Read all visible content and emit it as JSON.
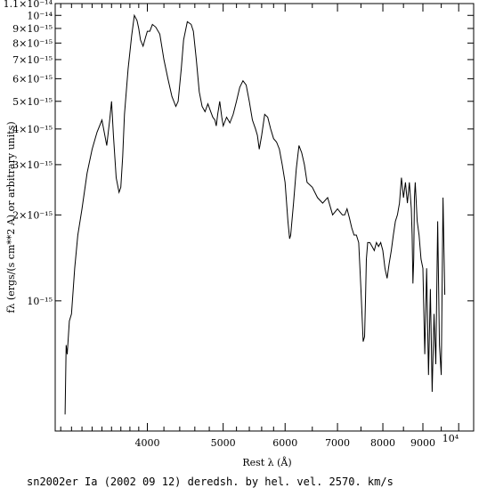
{
  "chart_data": {
    "type": "line",
    "xlabel": "Rest λ (Å)",
    "ylabel": "fλ (ergs/(s cm**2 A) or arbitrary units)",
    "caption": "sn2002er Ia (2002 09 12) deredsh. by hel. vel.  2570. km/s",
    "xscale": "log",
    "yscale": "log",
    "xlim": [
      3050,
      10450
    ],
    "ylim": [
      3.5e-16,
      1.1e-14
    ],
    "grid": false,
    "x_ticks": [
      {
        "value": 4000,
        "label": "4000"
      },
      {
        "value": 5000,
        "label": "5000"
      },
      {
        "value": 6000,
        "label": "6000"
      },
      {
        "value": 7000,
        "label": "7000"
      },
      {
        "value": 8000,
        "label": "8000"
      },
      {
        "value": 9000,
        "label": "9000"
      },
      {
        "value": 10000,
        "label": "10⁴"
      }
    ],
    "y_ticks": [
      {
        "value": 1.1e-14,
        "label": "1.1×10⁻¹⁴"
      },
      {
        "value": 1e-14,
        "label": "10⁻¹⁴"
      },
      {
        "value": 9e-15,
        "label": "9×10⁻¹⁵"
      },
      {
        "value": 8e-15,
        "label": "8×10⁻¹⁵"
      },
      {
        "value": 7e-15,
        "label": "7×10⁻¹⁵"
      },
      {
        "value": 6e-15,
        "label": "6×10⁻¹⁵"
      },
      {
        "value": 5e-15,
        "label": "5×10⁻¹⁵"
      },
      {
        "value": 4e-15,
        "label": "4×10⁻¹⁵"
      },
      {
        "value": 3e-15,
        "label": "3×10⁻¹⁵"
      },
      {
        "value": 2e-15,
        "label": "2×10⁻¹⁵"
      },
      {
        "value": 1e-15,
        "label": "10⁻¹⁵"
      }
    ],
    "series": [
      {
        "x": [
          3140,
          3150,
          3160,
          3180,
          3200,
          3230,
          3260,
          3300,
          3350,
          3400,
          3450,
          3500,
          3550,
          3580,
          3600,
          3620,
          3650,
          3680,
          3700,
          3720,
          3740,
          3780,
          3820,
          3850,
          3880,
          3900,
          3920,
          3950,
          3980,
          4000,
          4030,
          4060,
          4100,
          4150,
          4200,
          4250,
          4300,
          4350,
          4380,
          4420,
          4450,
          4500,
          4550,
          4580,
          4620,
          4660,
          4700,
          4740,
          4780,
          4820,
          4850,
          4880,
          4900,
          4920,
          4950,
          4980,
          5000,
          5050,
          5100,
          5150,
          5200,
          5250,
          5300,
          5350,
          5400,
          5450,
          5500,
          5530,
          5560,
          5600,
          5650,
          5700,
          5750,
          5800,
          5850,
          5900,
          5950,
          6000,
          6050,
          6080,
          6100,
          6150,
          6200,
          6250,
          6300,
          6350,
          6400,
          6500,
          6600,
          6700,
          6800,
          6900,
          7000,
          7050,
          7100,
          7150,
          7200,
          7250,
          7300,
          7350,
          7400,
          7450,
          7500,
          7550,
          7580,
          7600,
          7620,
          7650,
          7700,
          7750,
          7800,
          7850,
          7900,
          7950,
          8000,
          8050,
          8100,
          8150,
          8200,
          8250,
          8300,
          8350,
          8400,
          8450,
          8500,
          8550,
          8600,
          8650,
          8700,
          8720,
          8740,
          8760,
          8780,
          8800,
          8850,
          8900,
          8950,
          9000,
          9050,
          9100,
          9150,
          9200,
          9250,
          9300,
          9350,
          9400,
          9450,
          9500,
          9550,
          9600
        ],
        "y": [
          4e-16,
          7e-16,
          6.5e-16,
          8.5e-16,
          9e-16,
          1.3e-15,
          1.7e-15,
          2.1e-15,
          2.8e-15,
          3.4e-15,
          3.9e-15,
          4.3e-15,
          3.5e-15,
          4.3e-15,
          5e-15,
          3.8e-15,
          2.7e-15,
          2.4e-15,
          2.5e-15,
          3.2e-15,
          4.5e-15,
          6.5e-15,
          8.5e-15,
          1e-14,
          9.6e-15,
          9e-15,
          8.2e-15,
          7.8e-15,
          8.4e-15,
          8.8e-15,
          8.8e-15,
          9.3e-15,
          9.1e-15,
          8.6e-15,
          7e-15,
          6e-15,
          5.2e-15,
          4.8e-15,
          5e-15,
          6.5e-15,
          8.2e-15,
          9.5e-15,
          9.3e-15,
          8.8e-15,
          7e-15,
          5.4e-15,
          4.8e-15,
          4.6e-15,
          4.9e-15,
          4.6e-15,
          4.4e-15,
          4.3e-15,
          4.1e-15,
          4.5e-15,
          5e-15,
          4.4e-15,
          4.1e-15,
          4.4e-15,
          4.2e-15,
          4.5e-15,
          5e-15,
          5.6e-15,
          5.9e-15,
          5.7e-15,
          5e-15,
          4.3e-15,
          4e-15,
          3.8e-15,
          3.4e-15,
          3.8e-15,
          4.5e-15,
          4.4e-15,
          4e-15,
          3.7e-15,
          3.6e-15,
          3.4e-15,
          3e-15,
          2.6e-15,
          1.9e-15,
          1.65e-15,
          1.7e-15,
          2.2e-15,
          2.9e-15,
          3.5e-15,
          3.3e-15,
          3e-15,
          2.6e-15,
          2.5e-15,
          2.3e-15,
          2.2e-15,
          2.3e-15,
          2e-15,
          2.1e-15,
          2.05e-15,
          2e-15,
          2e-15,
          2.1e-15,
          1.95e-15,
          1.8e-15,
          1.7e-15,
          1.7e-15,
          1.6e-15,
          1.1e-15,
          7.2e-16,
          7.5e-16,
          1e-15,
          1.4e-15,
          1.6e-15,
          1.6e-15,
          1.55e-15,
          1.5e-15,
          1.6e-15,
          1.55e-15,
          1.6e-15,
          1.5e-15,
          1.3e-15,
          1.2e-15,
          1.35e-15,
          1.5e-15,
          1.7e-15,
          1.9e-15,
          2e-15,
          2.2e-15,
          2.7e-15,
          2.3e-15,
          2.6e-15,
          2.2e-15,
          2.6e-15,
          2.1e-15,
          1.7e-15,
          1.15e-15,
          1.4e-15,
          2.3e-15,
          2.6e-15,
          1.9e-15,
          1.7e-15,
          1.4e-15,
          1.3e-15,
          6.5e-16,
          1.3e-15,
          5.5e-16,
          1.1e-15,
          4.8e-16,
          9e-16,
          6e-16,
          1.9e-15,
          7e-16,
          5.5e-16,
          2.3e-15,
          1.05e-15
        ]
      }
    ]
  }
}
